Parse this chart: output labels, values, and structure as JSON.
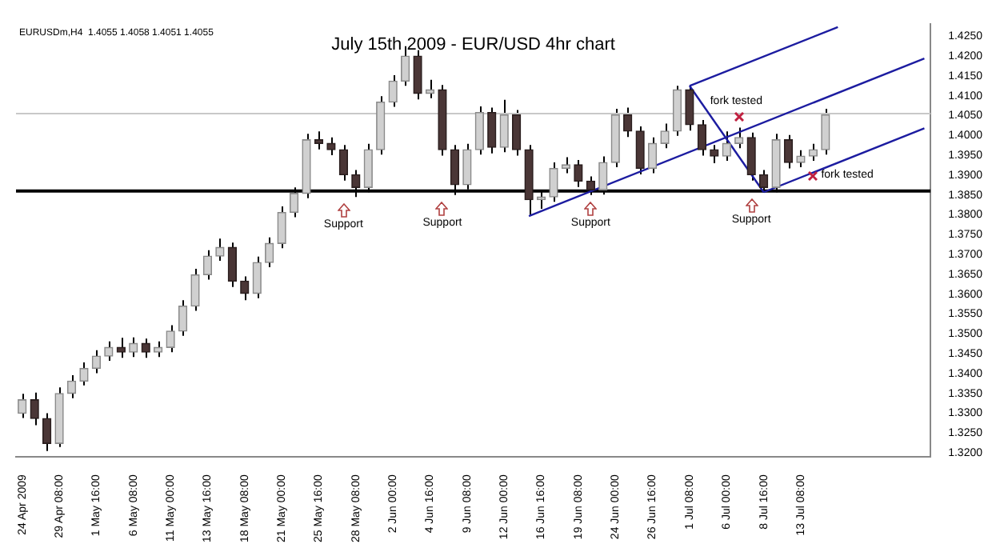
{
  "chart_data": {
    "type": "candlestick",
    "title": "July 15th 2009 - EUR/USD 4hr chart",
    "subtitle": "EURUSDm,H4  1.4055 1.4058 1.4051 1.4055",
    "categories": [
      "24 Apr 2009",
      null,
      null,
      "29 Apr 08:00",
      null,
      null,
      "1 May 16:00",
      null,
      null,
      "6 May 08:00",
      null,
      null,
      "11 May 00:00",
      null,
      null,
      "13 May 16:00",
      null,
      null,
      "18 May 08:00",
      null,
      null,
      "21 May 00:00",
      null,
      null,
      "25 May 16:00",
      null,
      null,
      "28 May 08:00",
      null,
      null,
      "2 Jun 00:00",
      null,
      null,
      "4 Jun 16:00",
      null,
      null,
      "9 Jun 08:00",
      null,
      null,
      "12 Jun 00:00",
      null,
      null,
      "16 Jun 16:00",
      null,
      null,
      "19 Jun 08:00",
      null,
      null,
      "24 Jun 00:00",
      null,
      null,
      "26 Jun 16:00",
      null,
      null,
      "1 Jul 08:00",
      null,
      null,
      "6 Jul 00:00",
      null,
      null,
      "8 Jul 16:00",
      null,
      null,
      "13 Jul 08:00",
      null,
      null,
      null,
      null,
      null,
      null,
      null,
      null,
      null,
      null
    ],
    "ohlc": [
      [
        1.33,
        1.3349,
        1.3288,
        1.3334
      ],
      [
        1.3334,
        1.3352,
        1.327,
        1.3287
      ],
      [
        1.3287,
        1.33,
        1.3205,
        1.3224
      ],
      [
        1.3224,
        1.3365,
        1.3215,
        1.335
      ],
      [
        1.335,
        1.3396,
        1.3338,
        1.3381
      ],
      [
        1.3381,
        1.3428,
        1.337,
        1.3413
      ],
      [
        1.3413,
        1.3459,
        1.3401,
        1.3444
      ],
      [
        1.3444,
        1.3481,
        1.3432,
        1.3466
      ],
      [
        1.3466,
        1.349,
        1.344,
        1.3454
      ],
      [
        1.3454,
        1.3491,
        1.3442,
        1.3476
      ],
      [
        1.3476,
        1.3488,
        1.344,
        1.3454
      ],
      [
        1.3454,
        1.3481,
        1.3442,
        1.3466
      ],
      [
        1.3466,
        1.3522,
        1.3454,
        1.3507
      ],
      [
        1.3507,
        1.3585,
        1.3495,
        1.357
      ],
      [
        1.357,
        1.3664,
        1.3558,
        1.3649
      ],
      [
        1.3649,
        1.3711,
        1.3637,
        1.3696
      ],
      [
        1.3696,
        1.374,
        1.3684,
        1.3718
      ],
      [
        1.3718,
        1.373,
        1.3618,
        1.3633
      ],
      [
        1.3633,
        1.3645,
        1.3585,
        1.3602
      ],
      [
        1.3602,
        1.3695,
        1.359,
        1.368
      ],
      [
        1.368,
        1.3743,
        1.3668,
        1.3728
      ],
      [
        1.3728,
        1.3821,
        1.3716,
        1.3806
      ],
      [
        1.3806,
        1.3869,
        1.3794,
        1.3854
      ],
      [
        1.3854,
        1.4004,
        1.3842,
        1.3989
      ],
      [
        1.3989,
        1.401,
        1.3965,
        1.398
      ],
      [
        1.398,
        1.3995,
        1.395,
        1.3964
      ],
      [
        1.3964,
        1.3976,
        1.3886,
        1.3901
      ],
      [
        1.3901,
        1.3913,
        1.3845,
        1.3869
      ],
      [
        1.3869,
        1.3979,
        1.3857,
        1.3964
      ],
      [
        1.3964,
        1.4099,
        1.3952,
        1.4084
      ],
      [
        1.4084,
        1.4152,
        1.4072,
        1.4137
      ],
      [
        1.4137,
        1.4225,
        1.4125,
        1.42
      ],
      [
        1.42,
        1.4215,
        1.4091,
        1.4106
      ],
      [
        1.4106,
        1.414,
        1.4094,
        1.4115
      ],
      [
        1.4115,
        1.4127,
        1.3949,
        1.3964
      ],
      [
        1.3964,
        1.3976,
        1.385,
        1.3876
      ],
      [
        1.3876,
        1.3979,
        1.3864,
        1.3964
      ],
      [
        1.3964,
        1.4073,
        1.3952,
        1.4058
      ],
      [
        1.4058,
        1.407,
        1.3955,
        1.397
      ],
      [
        1.397,
        1.409,
        1.3958,
        1.4052
      ],
      [
        1.4052,
        1.4064,
        1.3949,
        1.3964
      ],
      [
        1.3964,
        1.3976,
        1.38,
        1.3838
      ],
      [
        1.3838,
        1.386,
        1.3815,
        1.3845
      ],
      [
        1.3845,
        1.3932,
        1.3833,
        1.3917
      ],
      [
        1.3917,
        1.3945,
        1.3905,
        1.3926
      ],
      [
        1.3926,
        1.3938,
        1.387,
        1.3885
      ],
      [
        1.3885,
        1.3897,
        1.385,
        1.3863
      ],
      [
        1.3863,
        1.3947,
        1.3851,
        1.3932
      ],
      [
        1.3932,
        1.4067,
        1.392,
        1.4052
      ],
      [
        1.4052,
        1.407,
        1.3996,
        1.4011
      ],
      [
        1.4011,
        1.4023,
        1.3902,
        1.3917
      ],
      [
        1.3917,
        1.3995,
        1.3905,
        1.398
      ],
      [
        1.398,
        1.403,
        1.3968,
        1.4011
      ],
      [
        1.4011,
        1.4125,
        1.3999,
        1.4115
      ],
      [
        1.4115,
        1.4122,
        1.4012,
        1.4027
      ],
      [
        1.4027,
        1.4039,
        1.3949,
        1.3964
      ],
      [
        1.3964,
        1.3976,
        1.393,
        1.3948
      ],
      [
        1.3948,
        1.401,
        1.3936,
        1.398
      ],
      [
        1.398,
        1.402,
        1.3968,
        1.3995
      ],
      [
        1.3995,
        1.4007,
        1.3886,
        1.3901
      ],
      [
        1.3901,
        1.3913,
        1.3857,
        1.3869
      ],
      [
        1.3869,
        1.4004,
        1.3857,
        1.3989
      ],
      [
        1.3989,
        1.4001,
        1.3917,
        1.3932
      ],
      [
        1.3932,
        1.3963,
        1.392,
        1.3948
      ],
      [
        1.3948,
        1.3979,
        1.3936,
        1.3964
      ],
      [
        1.3964,
        1.4067,
        1.3952,
        1.4052
      ],
      null,
      null,
      null,
      null,
      null,
      null,
      null,
      null
    ],
    "series": [
      {
        "type": "line",
        "color": "#1c1ca0",
        "values": [
          null,
          null,
          null,
          null,
          null,
          null,
          null,
          null,
          null,
          null,
          null,
          null,
          null,
          null,
          null,
          null,
          null,
          null,
          null,
          null,
          null,
          null,
          null,
          null,
          null,
          null,
          null,
          null,
          null,
          null,
          null,
          null,
          null,
          null,
          null,
          null,
          null,
          null,
          null,
          null,
          null,
          null,
          null,
          null,
          null,
          null,
          null,
          null,
          null,
          null,
          null,
          null,
          null,
          null,
          1.4125,
          null,
          null,
          null,
          null,
          null,
          null,
          null,
          null,
          null,
          null,
          null,
          1.4273,
          null,
          null,
          null,
          null,
          null,
          null,
          null
        ]
      },
      {
        "type": "line",
        "color": "#1c1ca0",
        "values": [
          null,
          null,
          null,
          null,
          null,
          null,
          null,
          null,
          null,
          null,
          null,
          null,
          null,
          null,
          null,
          null,
          null,
          null,
          null,
          null,
          null,
          null,
          null,
          null,
          null,
          null,
          null,
          null,
          null,
          null,
          null,
          null,
          null,
          null,
          null,
          null,
          null,
          null,
          null,
          null,
          null,
          1.3797,
          null,
          null,
          null,
          null,
          null,
          null,
          null,
          null,
          null,
          null,
          null,
          null,
          null,
          null,
          null,
          null,
          null,
          null,
          null,
          null,
          null,
          null,
          null,
          null,
          null,
          null,
          null,
          null,
          null,
          null,
          null,
          1.4194
        ]
      },
      {
        "type": "line",
        "color": "#1c1ca0",
        "values": [
          null,
          null,
          null,
          null,
          null,
          null,
          null,
          null,
          null,
          null,
          null,
          null,
          null,
          null,
          null,
          null,
          null,
          null,
          null,
          null,
          null,
          null,
          null,
          null,
          null,
          null,
          null,
          null,
          null,
          null,
          null,
          null,
          null,
          null,
          null,
          null,
          null,
          null,
          null,
          null,
          null,
          null,
          null,
          null,
          null,
          null,
          null,
          null,
          null,
          null,
          null,
          null,
          null,
          null,
          null,
          null,
          null,
          null,
          null,
          null,
          1.3857,
          null,
          null,
          null,
          null,
          null,
          null,
          null,
          null,
          null,
          null,
          null,
          null,
          1.4018
        ]
      },
      {
        "type": "line",
        "color": "#1c1ca0",
        "values": [
          null,
          null,
          null,
          null,
          null,
          null,
          null,
          null,
          null,
          null,
          null,
          null,
          null,
          null,
          null,
          null,
          null,
          null,
          null,
          null,
          null,
          null,
          null,
          null,
          null,
          null,
          null,
          null,
          null,
          null,
          null,
          null,
          null,
          null,
          null,
          null,
          null,
          null,
          null,
          null,
          null,
          null,
          null,
          null,
          null,
          null,
          null,
          null,
          null,
          null,
          null,
          null,
          null,
          null,
          1.4125,
          null,
          null,
          null,
          null,
          null,
          1.3857,
          null,
          null,
          null,
          null,
          null,
          null,
          null,
          null,
          null,
          null,
          null,
          null,
          null
        ]
      }
    ],
    "ylim": [
      1.319,
      1.428
    ],
    "yticks": [
      {
        "value": 1.32,
        "label": "1.3200"
      },
      {
        "value": 1.325,
        "label": "1.3250"
      },
      {
        "value": 1.33,
        "label": "1.3300"
      },
      {
        "value": 1.335,
        "label": "1.3350"
      },
      {
        "value": 1.34,
        "label": "1.3400"
      },
      {
        "value": 1.345,
        "label": "1.3450"
      },
      {
        "value": 1.35,
        "label": "1.3500"
      },
      {
        "value": 1.355,
        "label": "1.3550"
      },
      {
        "value": 1.36,
        "label": "1.3600"
      },
      {
        "value": 1.365,
        "label": "1.3650"
      },
      {
        "value": 1.37,
        "label": "1.3700"
      },
      {
        "value": 1.375,
        "label": "1.3750"
      },
      {
        "value": 1.38,
        "label": "1.3800"
      },
      {
        "value": 1.385,
        "label": "1.3850"
      },
      {
        "value": 1.39,
        "label": "1.3900"
      },
      {
        "value": 1.395,
        "label": "1.3950"
      },
      {
        "value": 1.4,
        "label": "1.4000"
      },
      {
        "value": 1.405,
        "label": "1.4050"
      },
      {
        "value": 1.41,
        "label": "1.4100"
      },
      {
        "value": 1.415,
        "label": "1.4150"
      },
      {
        "value": 1.42,
        "label": "1.4200"
      },
      {
        "value": 1.425,
        "label": "1.4250"
      }
    ],
    "ref_lines": [
      {
        "axis": "y",
        "value": 1.386,
        "color": "#000000"
      },
      {
        "axis": "y",
        "value": 1.4055,
        "color": "#c8c8c8"
      }
    ],
    "annotations": [
      "Support",
      "Support",
      "Support",
      "Support",
      "fork tested",
      "fork tested"
    ],
    "grid": false,
    "legend": false,
    "marker": "none"
  }
}
